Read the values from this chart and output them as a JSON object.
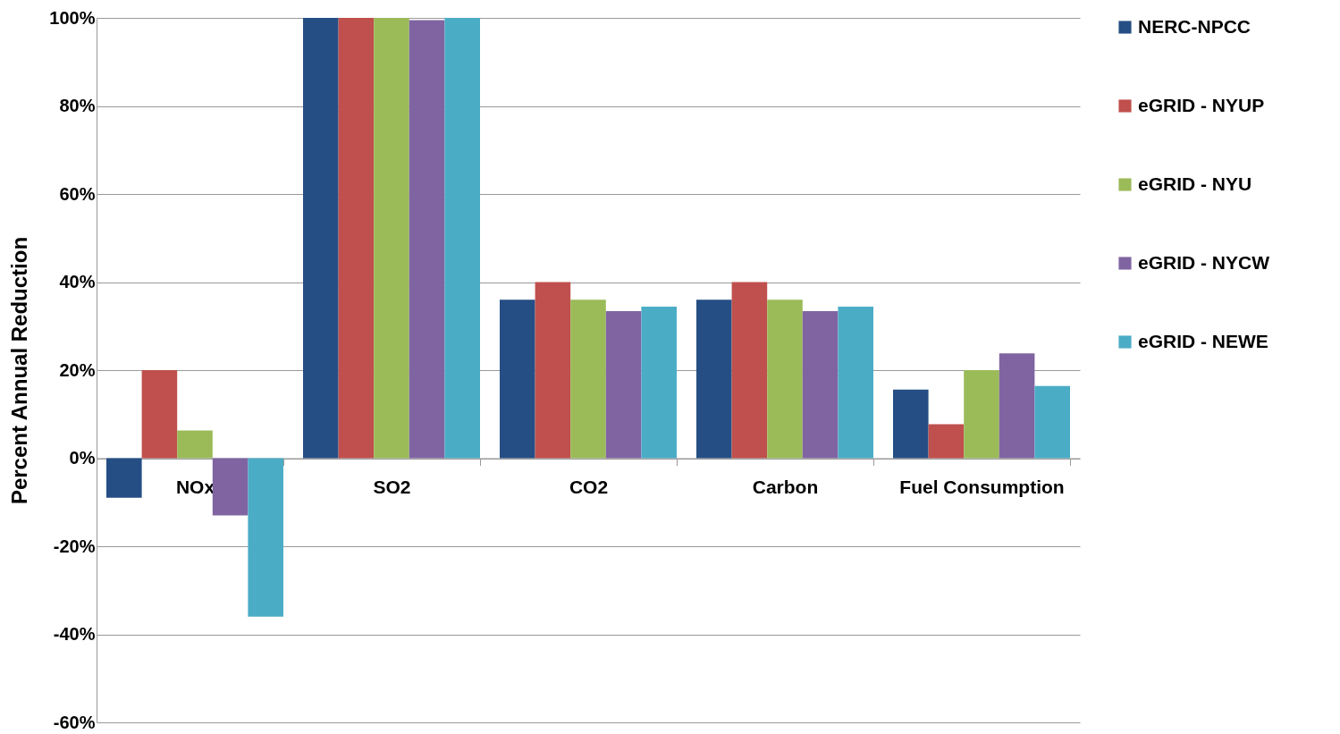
{
  "chart_data": {
    "type": "bar",
    "ylabel": "Percent Annual Reduction",
    "categories": [
      "NOx",
      "SO2",
      "CO2",
      "Carbon",
      "Fuel Consumption"
    ],
    "series": [
      {
        "name": "NERC-NPCC",
        "color": "#254e84",
        "values": [
          -9,
          100,
          36,
          36,
          15.6
        ]
      },
      {
        "name": "eGRID - NYUP",
        "color": "#c0504d",
        "values": [
          20,
          100,
          40,
          40,
          7.7
        ]
      },
      {
        "name": "eGRID - NYU",
        "color": "#9bbb59",
        "values": [
          6.3,
          100,
          36,
          36,
          20
        ]
      },
      {
        "name": "eGRID - NYCW",
        "color": "#8064a2",
        "values": [
          -13,
          99.5,
          33.4,
          33.4,
          23.8
        ]
      },
      {
        "name": "eGRID - NEWE",
        "color": "#4bacc6",
        "values": [
          -36,
          100,
          34.4,
          34.4,
          16.4
        ]
      }
    ],
    "ylim": [
      -60,
      100
    ],
    "yticks": [
      {
        "value": -60,
        "label": "-60%"
      },
      {
        "value": -40,
        "label": "-40%"
      },
      {
        "value": -20,
        "label": "-20%"
      },
      {
        "value": 0,
        "label": "0%"
      },
      {
        "value": 20,
        "label": "20%"
      },
      {
        "value": 40,
        "label": "40%"
      },
      {
        "value": 60,
        "label": "60%"
      },
      {
        "value": 80,
        "label": "80%"
      },
      {
        "value": 100,
        "label": "100%"
      }
    ],
    "grid": "y",
    "legend": "top right"
  }
}
